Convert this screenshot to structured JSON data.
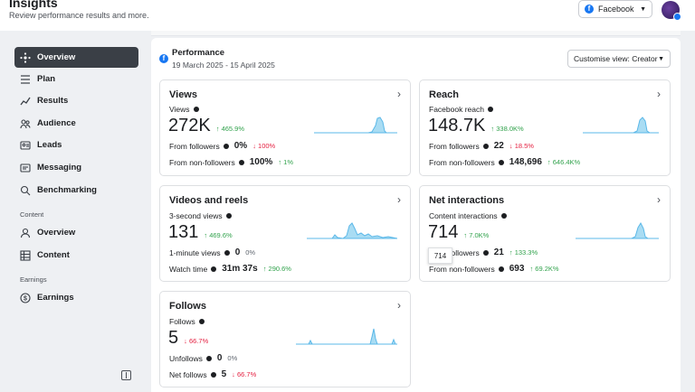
{
  "header": {
    "title": "Insights",
    "subtitle": "Review performance results and more.",
    "platform_select": "Facebook"
  },
  "sidebar": {
    "items": [
      {
        "label": "Overview",
        "icon": "sparkle-icon",
        "active": true
      },
      {
        "label": "Plan",
        "icon": "list-icon"
      },
      {
        "label": "Results",
        "icon": "trend-icon"
      },
      {
        "label": "Audience",
        "icon": "people-icon"
      },
      {
        "label": "Leads",
        "icon": "leads-icon"
      },
      {
        "label": "Messaging",
        "icon": "messaging-icon"
      },
      {
        "label": "Benchmarking",
        "icon": "benchmark-icon"
      }
    ],
    "content_section": "Content",
    "content_items": [
      {
        "label": "Overview",
        "icon": "overview-icon"
      },
      {
        "label": "Content",
        "icon": "grid-icon"
      }
    ],
    "earnings_section": "Earnings",
    "earnings_items": [
      {
        "label": "Earnings",
        "icon": "dollar-icon"
      }
    ]
  },
  "performance": {
    "title": "Performance",
    "date_range": "19 March 2025 - 15 April 2025",
    "customise_view": "Customise view: Creator"
  },
  "cards": {
    "views": {
      "title": "Views",
      "metric_label": "Views",
      "value": "272K",
      "change": "465.9%",
      "row1_label": "From followers",
      "row1_value": "0%",
      "row1_change": "100%",
      "row2_label": "From non-followers",
      "row2_value": "100%",
      "row2_change": "1%"
    },
    "reach": {
      "title": "Reach",
      "metric_label": "Facebook reach",
      "value": "148.7K",
      "change": "338.0K%",
      "row1_label": "From followers",
      "row1_value": "22",
      "row1_change": "18.5%",
      "row2_label": "From non-followers",
      "row2_value": "148,696",
      "row2_change": "646.4K%"
    },
    "videos": {
      "title": "Videos and reels",
      "metric_label": "3-second views",
      "value": "131",
      "change": "469.6%",
      "row1_label": "1-minute views",
      "row1_value": "0",
      "row1_change": "0%",
      "row2_label": "Watch time",
      "row2_value": "31m 37s",
      "row2_change": "290.6%"
    },
    "net": {
      "title": "Net interactions",
      "metric_label": "Content interactions",
      "value": "714",
      "change": "7.0K%",
      "row1_label": "From followers",
      "row1_value": "21",
      "row1_change": "133.3%",
      "row2_label": "From non-followers",
      "row2_value": "693",
      "row2_change": "69.2K%",
      "tooltip": "714"
    },
    "follows": {
      "title": "Follows",
      "metric_label": "Follows",
      "value": "5",
      "change": "66.7%",
      "row1_label": "Unfollows",
      "row1_value": "0",
      "row1_change": "0%",
      "row2_label": "Net follows",
      "row2_value": "5",
      "row2_change": "66.7%"
    }
  },
  "colors": {
    "accent": "#1877f2",
    "up": "#31a24c",
    "down": "#e41e3f",
    "sparkline": "#5bb8e8"
  }
}
